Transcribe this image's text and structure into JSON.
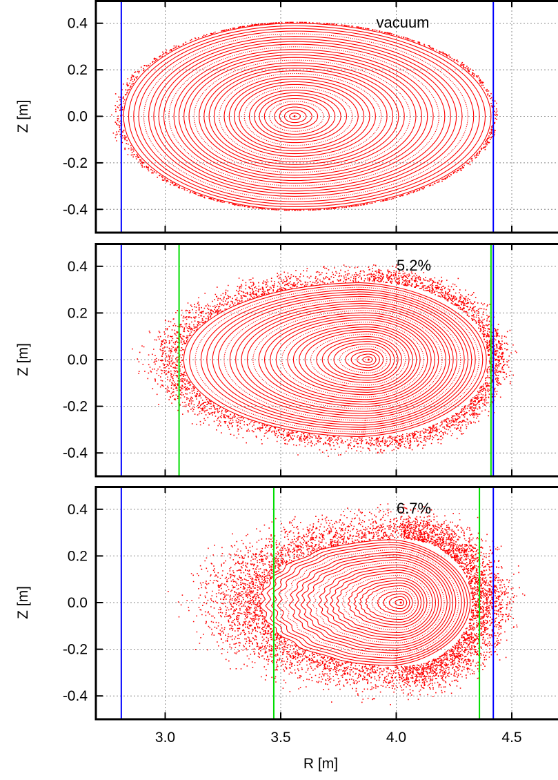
{
  "chart_data": {
    "type": "scatter",
    "xlabel": "R [m]",
    "ylabel": "Z [m]",
    "xlim": [
      2.7,
      4.7
    ],
    "ylim": [
      -0.5,
      0.5
    ],
    "x_ticks": [
      "3.0",
      "3.5",
      "4.0",
      "4.5"
    ],
    "x_tick_values": [
      3.0,
      3.5,
      4.0,
      4.5
    ],
    "y_ticks": [
      "0.4",
      "0.2",
      "0.0",
      "-0.2",
      "-0.4"
    ],
    "y_tick_values": [
      0.4,
      0.2,
      0.0,
      -0.2,
      -0.4
    ],
    "grid": true,
    "point_color": "#ff0000",
    "panels": [
      {
        "label": "vacuum",
        "axis_center": [
          3.56,
          0.0
        ],
        "core_inner_edge": 2.82,
        "core_outer_edge": 4.41,
        "core_half_height": 0.4,
        "blue_lines": [
          2.81,
          4.42
        ],
        "green_lines": []
      },
      {
        "label": "5.2%",
        "axis_center": [
          3.88,
          0.0
        ],
        "core_inner_edge": 3.08,
        "core_outer_edge": 4.39,
        "core_half_height": 0.33,
        "blue_lines": [
          2.81,
          4.42
        ],
        "green_lines": [
          3.06,
          4.41
        ]
      },
      {
        "label": "6.7%",
        "axis_center": [
          4.02,
          0.0
        ],
        "core_inner_edge": 3.42,
        "core_outer_edge": 4.32,
        "core_half_height": 0.27,
        "blue_lines": [
          2.81,
          4.42
        ],
        "green_lines": [
          3.47,
          4.36
        ]
      }
    ],
    "line_colors": {
      "blue": "#0000ff",
      "green": "#00dd00"
    }
  }
}
